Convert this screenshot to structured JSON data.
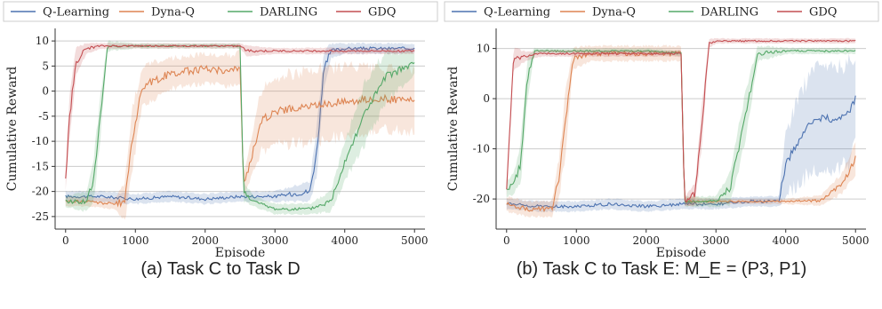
{
  "colors": {
    "q_learning": "#4c72b0",
    "dyna_q": "#dd8452",
    "darling": "#55a868",
    "gdq": "#c44e52",
    "grid": "#cccccc",
    "axis": "#333333"
  },
  "chart_data": [
    {
      "type": "line",
      "caption": "(a) Task C to Task D",
      "xlabel": "Episode",
      "ylabel": "Cumulative Reward",
      "xlim": [
        -150,
        5150
      ],
      "ylim": [
        -27.5,
        12.5
      ],
      "xticks": [
        0,
        1000,
        2000,
        3000,
        4000,
        5000
      ],
      "yticks": [
        -25,
        -20,
        -15,
        -10,
        -5,
        0,
        5,
        10
      ],
      "grid": "horizontal",
      "legend": "top",
      "series": [
        {
          "name": "Q-Learning",
          "color_key": "q_learning",
          "x": [
            0,
            500,
            1000,
            1500,
            2000,
            2500,
            3000,
            3500,
            3600,
            3700,
            3800,
            4000,
            4500,
            5000
          ],
          "y": [
            -21,
            -21,
            -21.5,
            -21,
            -21.5,
            -21,
            -21,
            -20,
            -12,
            4,
            8,
            8.5,
            8.5,
            8.5
          ],
          "band": [
            1,
            1,
            1,
            1,
            1,
            1,
            1,
            2,
            5,
            4,
            1.5,
            1,
            1,
            1
          ]
        },
        {
          "name": "Dyna-Q",
          "color_key": "dyna_q",
          "x": [
            0,
            300,
            700,
            850,
            950,
            1100,
            1500,
            2000,
            2400,
            2500,
            2550,
            2800,
            3000,
            3500,
            4000,
            4500,
            5000
          ],
          "y": [
            -22,
            -22,
            -22.5,
            -22,
            -10,
            1,
            3.5,
            4.5,
            4,
            5,
            -19,
            -6,
            -4,
            -3,
            -2,
            -1.5,
            -2
          ],
          "band": [
            1,
            1,
            1,
            4,
            6,
            4,
            3,
            3,
            3,
            4,
            2,
            6,
            7,
            7,
            7,
            6,
            6
          ]
        },
        {
          "name": "DARLING",
          "color_key": "darling",
          "x": [
            0,
            300,
            400,
            500,
            600,
            1000,
            1500,
            2000,
            2500,
            2550,
            2700,
            3000,
            3500,
            3800,
            4000,
            4300,
            4600,
            5000
          ],
          "y": [
            -22,
            -22,
            -18,
            -5,
            9,
            9,
            9,
            9,
            9,
            -20,
            -22,
            -23.5,
            -23.5,
            -22,
            -14,
            -4,
            3,
            5.5
          ],
          "band": [
            1,
            2,
            4,
            4,
            1,
            0.5,
            0.5,
            0.5,
            0.5,
            2,
            1,
            1,
            1,
            2,
            4,
            6,
            5,
            2
          ]
        },
        {
          "name": "GDQ",
          "color_key": "gdq",
          "x": [
            0,
            50,
            150,
            300,
            500,
            1000,
            1500,
            2000,
            2500,
            2600,
            3000,
            3500,
            4000,
            4500,
            5000
          ],
          "y": [
            -18,
            -6,
            6,
            8.5,
            9,
            9,
            9,
            9,
            9,
            8,
            8,
            8,
            8,
            8,
            8
          ],
          "band": [
            2,
            4,
            3,
            1,
            0.6,
            0.5,
            0.5,
            0.5,
            0.5,
            1,
            0.6,
            0.6,
            0.6,
            0.6,
            0.6
          ]
        }
      ]
    },
    {
      "type": "line",
      "caption": "(b) Task C to Task E: M_E = (P3, P1)",
      "xlabel": "Episode",
      "ylabel": "Cumulative Reward",
      "xlim": [
        -150,
        5150
      ],
      "ylim": [
        -26,
        14
      ],
      "xticks": [
        0,
        1000,
        2000,
        3000,
        4000,
        5000
      ],
      "yticks": [
        -20,
        -10,
        0,
        10
      ],
      "grid": "horizontal",
      "legend": "top",
      "series": [
        {
          "name": "Q-Learning",
          "color_key": "q_learning",
          "x": [
            0,
            500,
            1000,
            1500,
            2000,
            2500,
            3000,
            3500,
            3900,
            4000,
            4200,
            4400,
            4700,
            4900,
            5000
          ],
          "y": [
            -21,
            -21.5,
            -21.5,
            -21,
            -21.5,
            -21,
            -21,
            -20.5,
            -20.5,
            -13,
            -8,
            -4,
            -4,
            -3,
            0
          ],
          "band": [
            1,
            1,
            1,
            1,
            1,
            1,
            1,
            1,
            1,
            6,
            9,
            10,
            10,
            10,
            9
          ]
        },
        {
          "name": "Dyna-Q",
          "color_key": "dyna_q",
          "x": [
            0,
            300,
            650,
            750,
            850,
            950,
            1200,
            1600,
            2000,
            2500,
            2550,
            3000,
            3500,
            4000,
            4500,
            4800,
            5000
          ],
          "y": [
            -21,
            -22,
            -22,
            -16,
            -4,
            8,
            9,
            9,
            9,
            9,
            -20.5,
            -20.5,
            -20.5,
            -20.5,
            -20.3,
            -17,
            -12
          ],
          "band": [
            1.5,
            1.5,
            1.5,
            4,
            6,
            2,
            1.5,
            1.5,
            1.5,
            1.5,
            1,
            0.5,
            0.5,
            0.5,
            1,
            2,
            3
          ]
        },
        {
          "name": "DARLING",
          "color_key": "darling",
          "x": [
            0,
            100,
            200,
            300,
            400,
            700,
            1000,
            1500,
            2000,
            2500,
            2550,
            3000,
            3200,
            3400,
            3600,
            4000,
            4500,
            5000
          ],
          "y": [
            -18,
            -17,
            -13,
            4,
            9.5,
            9.5,
            9.5,
            9.5,
            9.5,
            9,
            -20.5,
            -20.5,
            -18,
            -5,
            9,
            9.5,
            9.5,
            9.5
          ],
          "band": [
            1.5,
            2,
            4,
            4,
            0.6,
            0.5,
            0.5,
            0.5,
            0.5,
            0.5,
            1,
            1,
            3,
            5,
            1.5,
            0.6,
            0.6,
            0.6
          ]
        },
        {
          "name": "GDQ",
          "color_key": "gdq",
          "x": [
            0,
            100,
            300,
            500,
            1000,
            1500,
            2000,
            2500,
            2550,
            2700,
            2800,
            2900,
            3000,
            3500,
            4000,
            4500,
            5000
          ],
          "y": [
            -18,
            8,
            8.5,
            9,
            9,
            9,
            9,
            9,
            -20.5,
            -19,
            -5,
            11,
            11.5,
            11.5,
            11.5,
            11.5,
            11.5
          ],
          "band": [
            2,
            2,
            0.8,
            0.6,
            0.6,
            0.6,
            0.6,
            0.6,
            1,
            2,
            4,
            1,
            0.5,
            0.5,
            0.5,
            0.5,
            0.5
          ]
        }
      ]
    }
  ]
}
